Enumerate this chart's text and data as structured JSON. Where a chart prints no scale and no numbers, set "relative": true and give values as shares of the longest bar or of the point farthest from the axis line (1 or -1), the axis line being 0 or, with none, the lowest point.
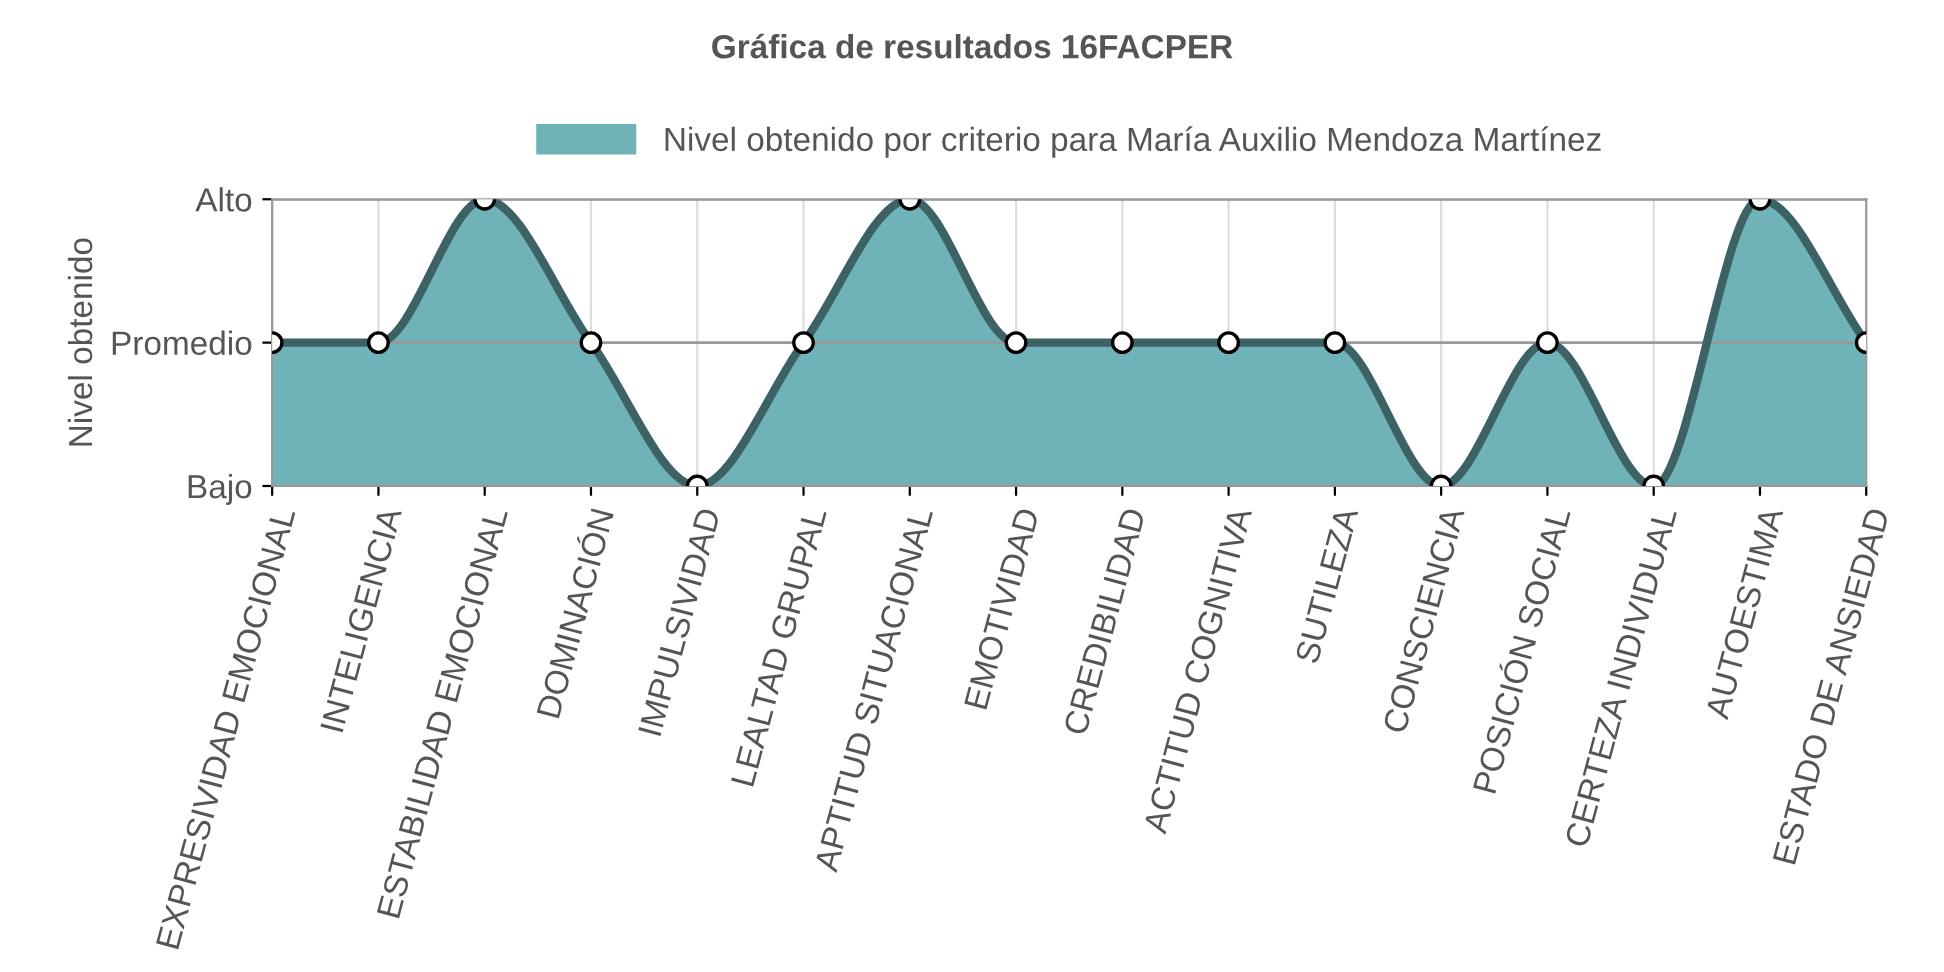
{
  "chart_data": {
    "type": "area",
    "title": "Gráfica de resultados 16FACPER",
    "ylabel": "Nivel obtenido",
    "categories": [
      "EXPRESIVIDAD EMOCIONAL",
      "INTELIGENCIA",
      "ESTABILIDAD EMOCIONAL",
      "DOMINACIÓN",
      "IMPULSIVIDAD",
      "LEALTAD GRUPAL",
      "APTITUD SITUACIONAL",
      "EMOTIVIDAD",
      "CREDIBILIDAD",
      "ACTITUD COGNITIVA",
      "SUTILEZA",
      "CONSCIENCIA",
      "POSICIÓN SOCIAL",
      "CERTEZA INDIVIDUAL",
      "AUTOESTIMA",
      "ESTADO DE ANSIEDAD"
    ],
    "relative": true,
    "series": [
      {
        "name": "Nivel obtenido por criterio para María Auxilio Mendoza Martínez",
        "color": "#6fb3b8",
        "values": [
          0.5,
          0.5,
          1,
          0.5,
          0,
          0.5,
          1,
          0.5,
          0.5,
          0.5,
          0.5,
          0,
          0.5,
          0,
          1,
          0.5
        ]
      }
    ],
    "ref_lines": [
      {
        "axis": "y",
        "value": 0,
        "label": "Bajo"
      },
      {
        "axis": "y",
        "value": 0.5,
        "label": "Promedio"
      },
      {
        "axis": "y",
        "value": 1,
        "label": "Alto"
      }
    ],
    "grid": "x",
    "legend": "top",
    "marker": "circle",
    "line_style": "solid"
  }
}
